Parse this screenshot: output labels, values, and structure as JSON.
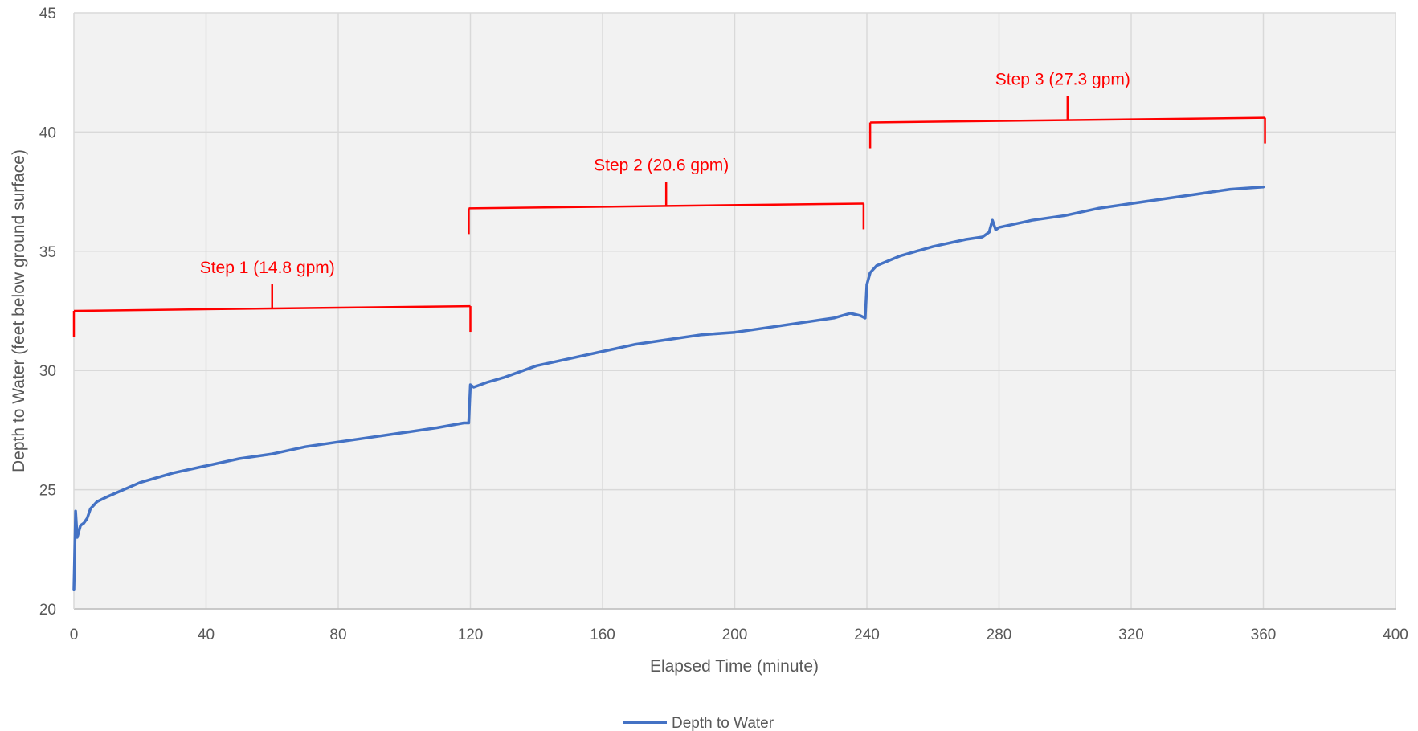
{
  "chart_data": {
    "type": "line",
    "xlabel": "Elapsed Time (minute)",
    "ylabel": "Depth to Water (feet below ground surface)",
    "xlim": [
      0,
      400
    ],
    "ylim": [
      20,
      45
    ],
    "x_ticks": [
      0,
      40,
      80,
      120,
      160,
      200,
      240,
      280,
      320,
      360,
      400
    ],
    "y_ticks": [
      20,
      25,
      30,
      35,
      40,
      45
    ],
    "grid": true,
    "legend_position": "bottom",
    "series": [
      {
        "name": "Depth to Water",
        "color": "#4472c4",
        "x": [
          0,
          0.5,
          1,
          2,
          3,
          4,
          5,
          7,
          10,
          15,
          20,
          30,
          40,
          50,
          60,
          70,
          80,
          90,
          100,
          110,
          118,
          119.5,
          120,
          121,
          125,
          130,
          140,
          150,
          160,
          170,
          180,
          190,
          200,
          210,
          220,
          230,
          235,
          238,
          239.5,
          240,
          241,
          243,
          250,
          260,
          270,
          275,
          277,
          278,
          279,
          280,
          290,
          300,
          310,
          320,
          330,
          340,
          350,
          360
        ],
        "y": [
          20.8,
          24.1,
          23.0,
          23.5,
          23.6,
          23.8,
          24.2,
          24.5,
          24.7,
          25.0,
          25.3,
          25.7,
          26.0,
          26.3,
          26.5,
          26.8,
          27.0,
          27.2,
          27.4,
          27.6,
          27.8,
          27.8,
          29.4,
          29.3,
          29.5,
          29.7,
          30.2,
          30.5,
          30.8,
          31.1,
          31.3,
          31.5,
          31.6,
          31.8,
          32.0,
          32.2,
          32.4,
          32.3,
          32.2,
          33.6,
          34.1,
          34.4,
          34.8,
          35.2,
          35.5,
          35.6,
          35.8,
          36.3,
          35.9,
          36.0,
          36.3,
          36.5,
          36.8,
          37.0,
          37.2,
          37.4,
          37.6,
          37.7
        ]
      }
    ],
    "annotations": [
      {
        "label": "Step 1 (14.8 gpm)",
        "x_start": 0,
        "x_end": 120,
        "y_left": 32.5,
        "y_right": 32.7
      },
      {
        "label": "Step 2 (20.6 gpm)",
        "x_start": 119.5,
        "x_end": 239,
        "y_left": 36.8,
        "y_right": 37.0
      },
      {
        "label": "Step 3 (27.3 gpm)",
        "x_start": 241,
        "x_end": 360.5,
        "y_left": 40.4,
        "y_right": 40.6
      }
    ],
    "annotation_color": "#ff0000"
  }
}
